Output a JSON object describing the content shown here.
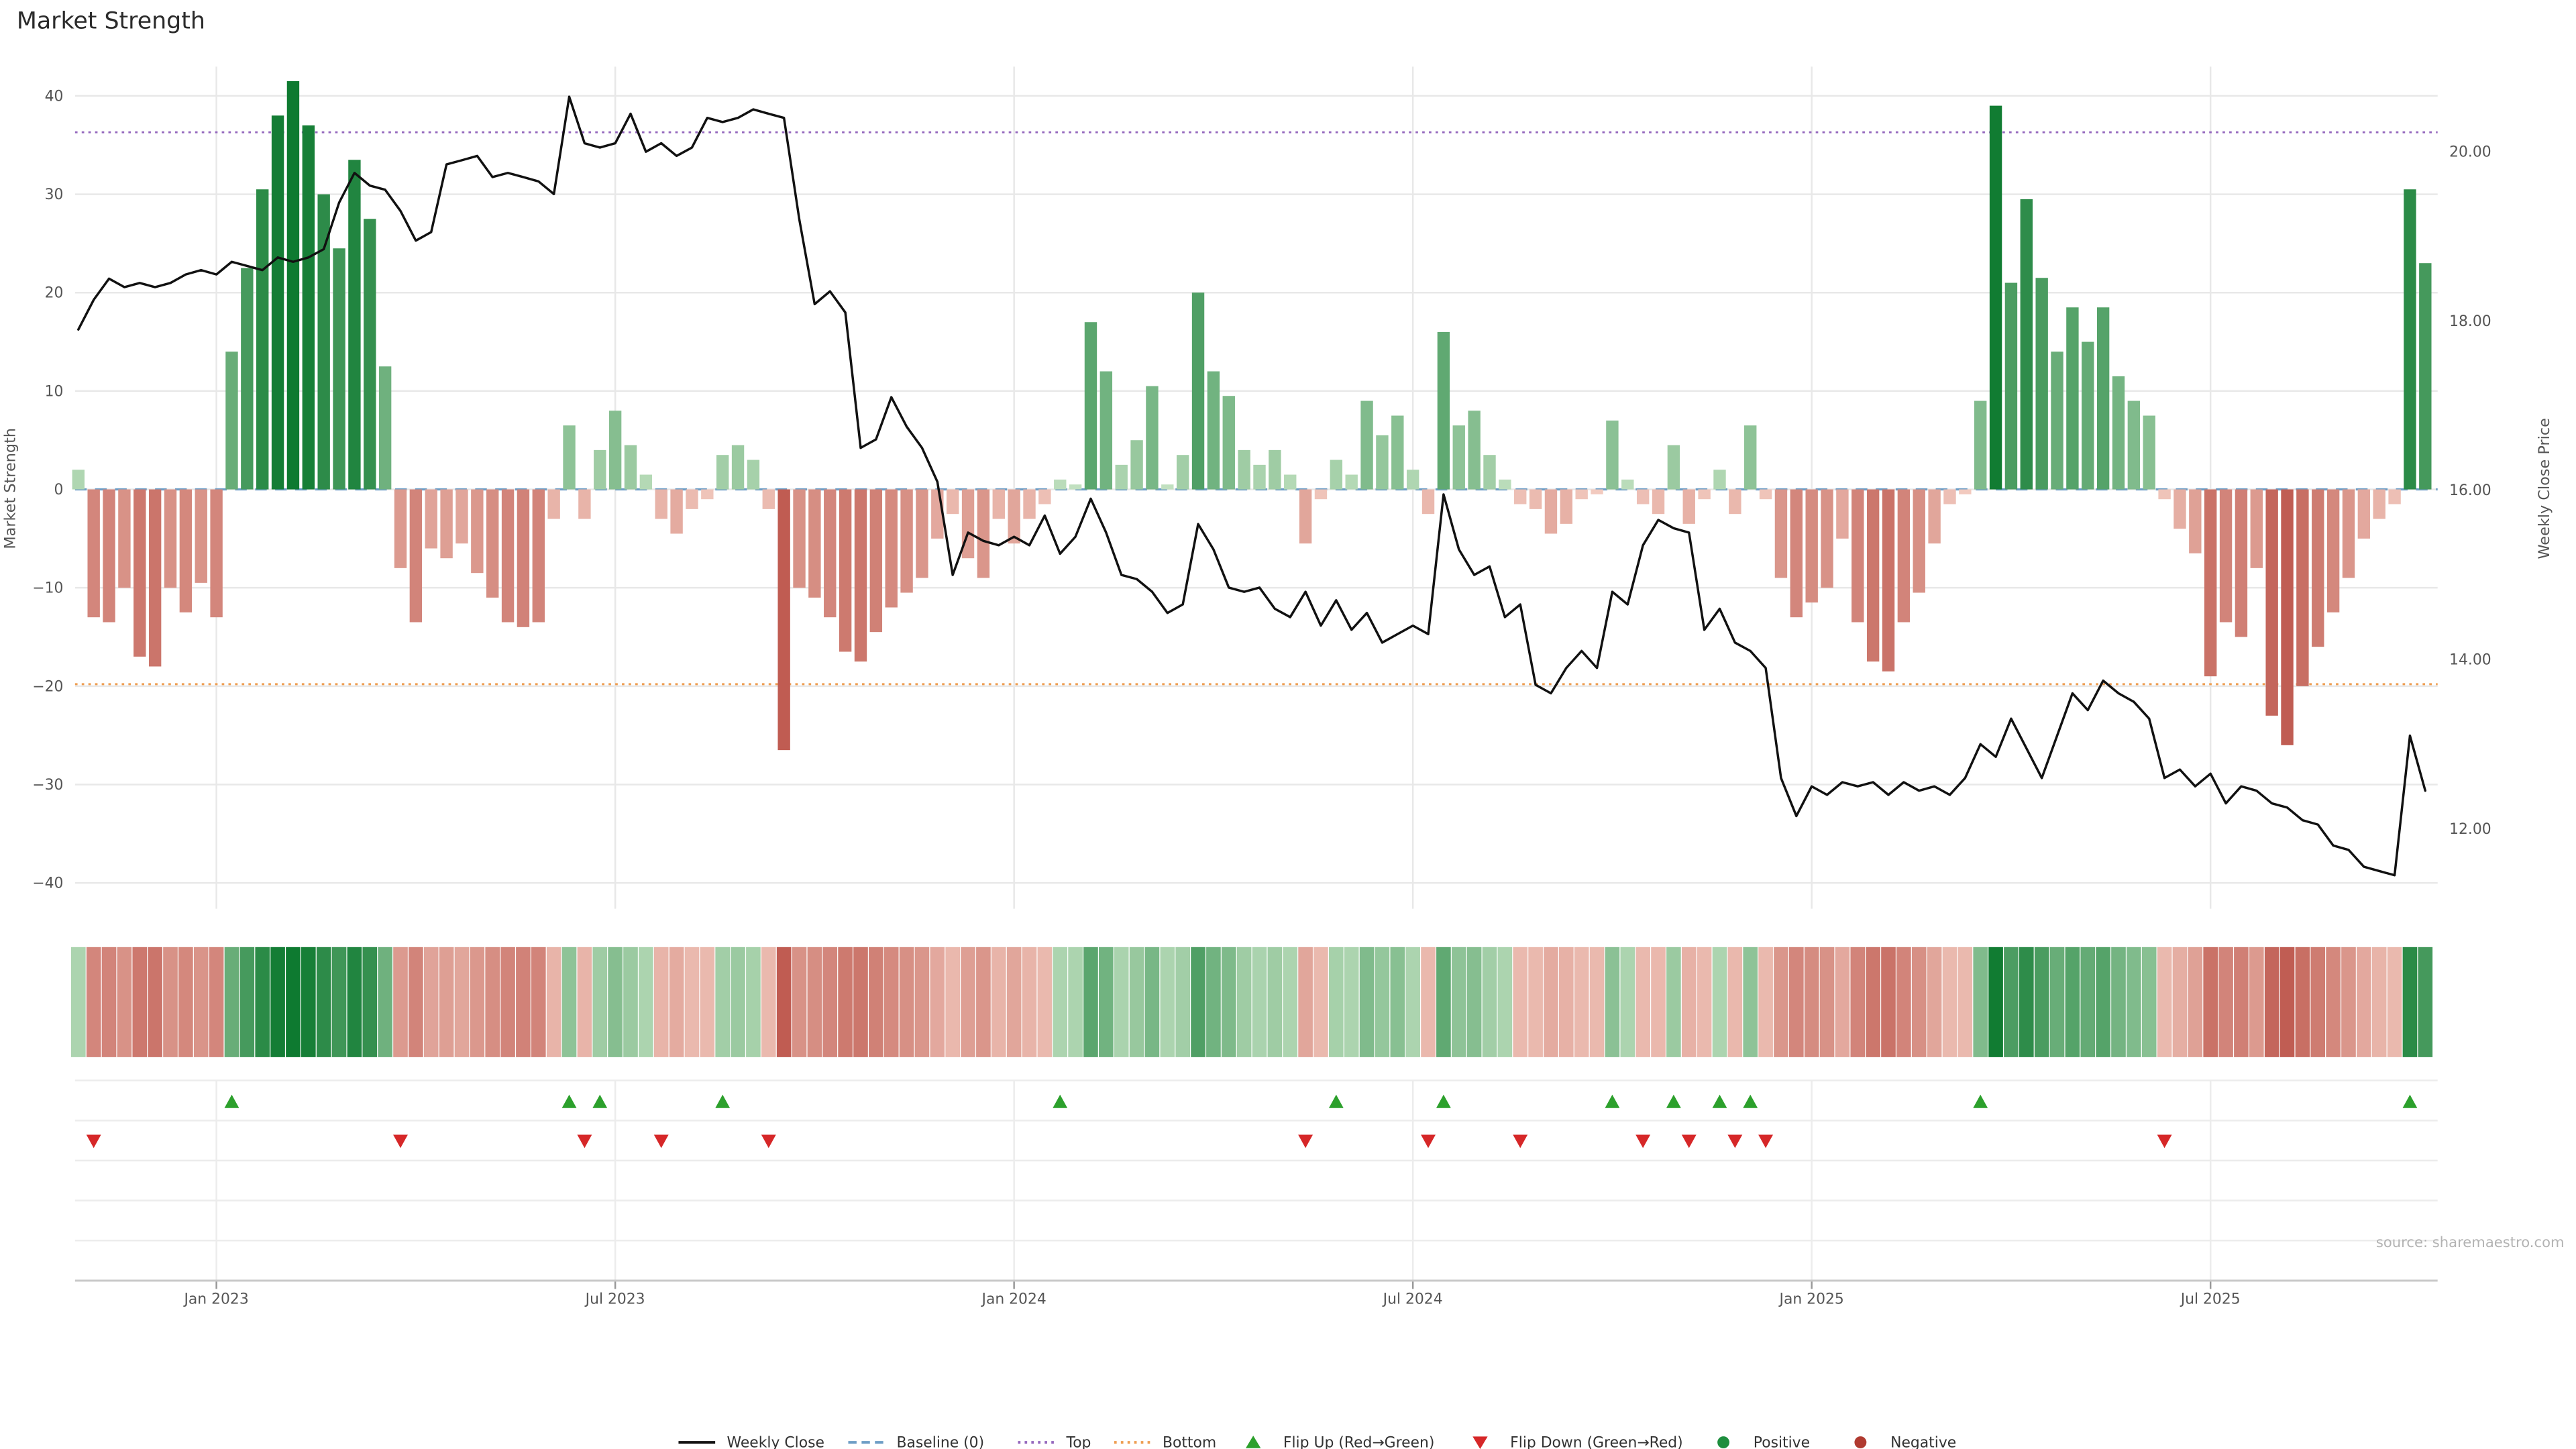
{
  "title": "Market Strength",
  "source": "source: sharemaestro.com",
  "axes": {
    "left_label": "Market Strength",
    "right_label": "Weekly Close Price",
    "left_ticks": [
      {
        "label": "40",
        "value": 40
      },
      {
        "label": "30",
        "value": 30
      },
      {
        "label": "20",
        "value": 20
      },
      {
        "label": "10",
        "value": 10
      },
      {
        "label": "0",
        "value": 0
      },
      {
        "label": "−10",
        "value": -10
      },
      {
        "label": "−20",
        "value": -20
      },
      {
        "label": "−30",
        "value": -30
      },
      {
        "label": "−40",
        "value": -40
      }
    ],
    "right_ticks": [
      {
        "label": "20.00",
        "value": 20
      },
      {
        "label": "18.00",
        "value": 18
      },
      {
        "label": "16.00",
        "value": 16
      },
      {
        "label": "14.00",
        "value": 14
      },
      {
        "label": "12.00",
        "value": 12
      }
    ],
    "x_ticks": [
      {
        "label": "Jan 2023",
        "week": 9
      },
      {
        "label": "Jul 2023",
        "week": 35
      },
      {
        "label": "Jan 2024",
        "week": 61
      },
      {
        "label": "Jul 2024",
        "week": 87
      },
      {
        "label": "Jan 2025",
        "week": 113
      },
      {
        "label": "Jul 2025",
        "week": 139
      }
    ]
  },
  "chart_data": {
    "type": "combo",
    "x_unit": "week_index",
    "n_points": 154,
    "left_axis_range": [
      -45,
      43
    ],
    "right_axis_range": [
      11.05,
      21.0
    ],
    "grid": true,
    "legend_position": "bottom-center",
    "series": [
      {
        "name": "Market Strength",
        "type": "bar",
        "axis": "left",
        "values": [
          2,
          -13,
          -13.5,
          -10,
          -17,
          -18,
          -10,
          -12.5,
          -9.5,
          -13,
          14,
          22.5,
          30.5,
          38,
          41.5,
          37,
          30,
          24.5,
          33.5,
          27.5,
          12.5,
          -8,
          -13.5,
          -6,
          -7,
          -5.5,
          -8.5,
          -11,
          -13.5,
          -14,
          -13.5,
          -3,
          6.5,
          -3,
          4,
          8,
          4.5,
          1.5,
          -3,
          -4.5,
          -2,
          -1,
          3.5,
          4.5,
          3,
          -2,
          -26.5,
          -10,
          -11,
          -13,
          -16.5,
          -17.5,
          -14.5,
          -12,
          -10.5,
          -9,
          -5,
          -2.5,
          -7,
          -9,
          -3,
          -5.5,
          -3,
          -1.5,
          1,
          0.5,
          17,
          12,
          2.5,
          5,
          10.5,
          0.5,
          3.5,
          20,
          12,
          9.5,
          4,
          2.5,
          4,
          1.5,
          -5.5,
          -1,
          3,
          1.5,
          9,
          5.5,
          7.5,
          2,
          -2.5,
          16,
          6.5,
          8,
          3.5,
          1,
          -1.5,
          -2,
          -4.5,
          -3.5,
          -1,
          -0.5,
          7,
          1,
          -1.5,
          -2.5,
          4.5,
          -3.5,
          -1,
          2,
          -2.5,
          6.5,
          -1,
          -9,
          -13,
          -11.5,
          -10,
          -5,
          -13.5,
          -17.5,
          -18.5,
          -13.5,
          -10.5,
          -5.5,
          -1.5,
          -0.5,
          9,
          39,
          21,
          29.5,
          21.5,
          14,
          18.5,
          15,
          18.5,
          11.5,
          9,
          7.5,
          -1,
          -4,
          -6.5,
          -19,
          -13.5,
          -15,
          -8,
          -23,
          -26,
          -20,
          -16,
          -12.5,
          -9,
          -5,
          -3,
          -1.5,
          30.5,
          23
        ]
      },
      {
        "name": "Weekly Close",
        "type": "line",
        "axis": "right",
        "values": [
          17.9,
          18.25,
          18.5,
          18.4,
          18.45,
          18.4,
          18.45,
          18.55,
          18.6,
          18.55,
          18.7,
          18.65,
          18.6,
          18.75,
          18.7,
          18.75,
          18.85,
          19.4,
          19.75,
          19.6,
          19.55,
          19.3,
          18.95,
          19.05,
          19.85,
          19.9,
          19.95,
          19.7,
          19.75,
          19.7,
          19.65,
          19.5,
          20.65,
          20.1,
          20.05,
          20.1,
          20.45,
          20.0,
          20.1,
          19.95,
          20.05,
          20.4,
          20.35,
          20.4,
          20.5,
          20.45,
          20.4,
          19.2,
          18.2,
          18.35,
          18.1,
          16.5,
          16.6,
          17.1,
          16.75,
          16.5,
          16.1,
          15.0,
          15.5,
          15.4,
          15.35,
          15.45,
          15.35,
          15.7,
          15.25,
          15.45,
          15.9,
          15.5,
          15.0,
          14.95,
          14.8,
          14.55,
          14.65,
          15.6,
          15.3,
          14.85,
          14.8,
          14.85,
          14.6,
          14.5,
          14.8,
          14.4,
          14.7,
          14.35,
          14.55,
          14.2,
          14.3,
          14.4,
          14.3,
          15.95,
          15.3,
          15.0,
          15.1,
          14.5,
          14.65,
          13.7,
          13.6,
          13.9,
          14.1,
          13.9,
          14.8,
          14.65,
          15.35,
          15.65,
          15.55,
          15.5,
          14.35,
          14.6,
          14.2,
          14.1,
          13.9,
          12.6,
          12.15,
          12.5,
          12.4,
          12.55,
          12.5,
          12.55,
          12.4,
          12.55,
          12.45,
          12.5,
          12.4,
          12.6,
          13.0,
          12.85,
          13.3,
          12.95,
          12.6,
          13.1,
          13.6,
          13.4,
          13.75,
          13.6,
          13.5,
          13.3,
          12.6,
          12.7,
          12.5,
          12.65,
          12.3,
          12.5,
          12.45,
          12.3,
          12.25,
          12.1,
          12.05,
          11.8,
          11.75,
          11.55,
          11.5,
          11.45,
          13.1,
          12.45
        ]
      }
    ],
    "reference_lines": {
      "baseline": 0,
      "top": 36.3,
      "bottom": -19.8
    },
    "flip_up_weeks": [
      10,
      32,
      34,
      42,
      64,
      82,
      89,
      100,
      104,
      107,
      109,
      124,
      152
    ],
    "flip_down_weeks": [
      1,
      21,
      33,
      38,
      45,
      80,
      88,
      94,
      102,
      105,
      108,
      110,
      136
    ]
  },
  "legend": [
    {
      "id": "weekly-close",
      "label": "Weekly Close",
      "swatch": "line",
      "color": "#111111"
    },
    {
      "id": "baseline",
      "label": "Baseline (0)",
      "swatch": "dashed",
      "color": "#6d9dc5"
    },
    {
      "id": "top",
      "label": "Top",
      "swatch": "dotted",
      "color": "#9467bd"
    },
    {
      "id": "bottom",
      "label": "Bottom",
      "swatch": "dotted",
      "color": "#ee9d50"
    },
    {
      "id": "flip-up",
      "label": "Flip Up (Red→Green)",
      "swatch": "triangle-up",
      "color": "#2ca02c"
    },
    {
      "id": "flip-down",
      "label": "Flip Down (Green→Red)",
      "swatch": "triangle-down",
      "color": "#d62728"
    },
    {
      "id": "positive",
      "label": "Positive",
      "swatch": "dot",
      "color": "#1e8e3e"
    },
    {
      "id": "negative",
      "label": "Negative",
      "swatch": "dot",
      "color": "#b03a30"
    }
  ],
  "colors": {
    "positive_light": "#cfe8cb",
    "positive_dark": "#0e7a30",
    "negative_light": "#f7d5ca",
    "negative_dark": "#b03a30",
    "close_line": "#111111",
    "baseline": "#6d9dc5",
    "top_line": "#9467bd",
    "bottom_line": "#ee9d50",
    "flip_up": "#2ca02c",
    "flip_down": "#d62728",
    "grid": "#e8e8e8",
    "panel_grid": "#ececec",
    "axis_line": "#c9c9c9",
    "tick_mark": "#999999",
    "axis_text": "#555555",
    "title_text": "#2b2b2b",
    "legend_text": "#333333",
    "source_text": "#b3b3b3"
  }
}
